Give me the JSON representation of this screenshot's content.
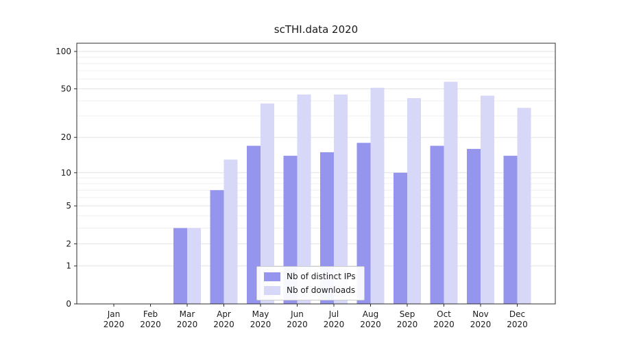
{
  "chart_data": {
    "type": "bar",
    "title": "scTHI.data 2020",
    "categories": [
      "Jan 2020",
      "Feb 2020",
      "Mar 2020",
      "Apr 2020",
      "May 2020",
      "Jun 2020",
      "Jul 2020",
      "Aug 2020",
      "Sep 2020",
      "Oct 2020",
      "Nov 2020",
      "Dec 2020"
    ],
    "series": [
      {
        "name": "Nb of distinct IPs",
        "color": "#9595ee",
        "values": [
          0,
          0,
          3,
          7,
          17,
          14,
          15,
          18,
          10,
          17,
          16,
          14
        ]
      },
      {
        "name": "Nb of downloads",
        "color": "#d7d7f8",
        "values": [
          0,
          0,
          3,
          13,
          38,
          45,
          45,
          51,
          42,
          57,
          44,
          35
        ]
      }
    ],
    "yticks": [
      0,
      1,
      2,
      5,
      10,
      20,
      50,
      100
    ],
    "minor_gridlines": [
      3,
      4,
      6,
      7,
      8,
      9,
      30,
      40,
      60,
      70,
      80,
      90
    ],
    "scale": "log1p",
    "ylim": [
      0,
      100
    ],
    "grid": "horizontal",
    "legend_position": "lower-center-inside",
    "colors": {
      "axis": "#2b2b2b",
      "grid_major": "#e2e2e2",
      "grid_minor": "#efefef",
      "text": "#1a1a1a",
      "legend_border": "#cccccc",
      "background": "#ffffff"
    }
  }
}
